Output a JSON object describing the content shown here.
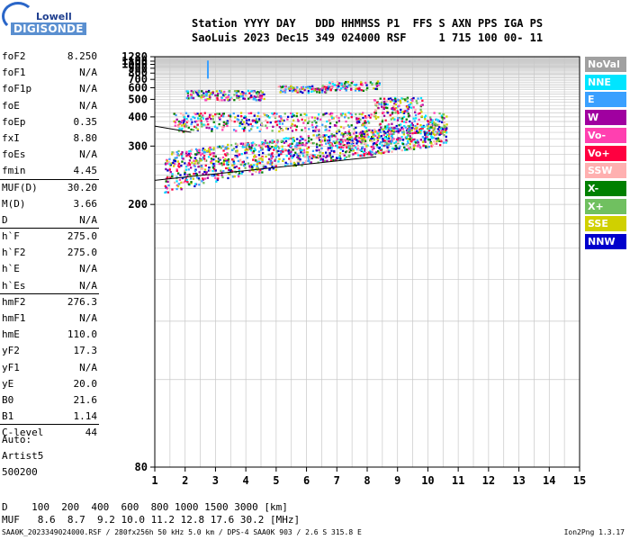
{
  "logo": {
    "top": "Lowell",
    "bottom": "DIGISONDE"
  },
  "header": {
    "row1": "Station YYYY DAY   DDD HHMMSS P1  FFS S AXN PPS IGA PS",
    "row2": "SaoLuis 2023 Dec15 349 024000 RSF     1 715 100 00- 11"
  },
  "params": [
    {
      "name": "foF2",
      "value": "8.250"
    },
    {
      "name": "foF1",
      "value": "N/A"
    },
    {
      "name": "foF1p",
      "value": "N/A"
    },
    {
      "name": "foE",
      "value": "N/A"
    },
    {
      "name": "foEp",
      "value": "0.35"
    },
    {
      "name": "fxI",
      "value": "8.80"
    },
    {
      "name": "foEs",
      "value": "N/A"
    },
    {
      "name": "fmin",
      "value": "4.45"
    },
    {
      "name": "MUF(D)",
      "value": "30.20"
    },
    {
      "name": "M(D)",
      "value": "3.66"
    },
    {
      "name": "D",
      "value": "N/A"
    },
    {
      "name": "h`F",
      "value": "275.0"
    },
    {
      "name": "h`F2",
      "value": "275.0"
    },
    {
      "name": "h`E",
      "value": "N/A"
    },
    {
      "name": "h`Es",
      "value": "N/A"
    },
    {
      "name": "hmF2",
      "value": "276.3"
    },
    {
      "name": "hmF1",
      "value": "N/A"
    },
    {
      "name": "hmE",
      "value": "110.0"
    },
    {
      "name": "yF2",
      "value": "17.3"
    },
    {
      "name": "yF1",
      "value": "N/A"
    },
    {
      "name": "yE",
      "value": "20.0"
    },
    {
      "name": "B0",
      "value": "21.6"
    },
    {
      "name": "B1",
      "value": "1.14"
    },
    {
      "name": "C-level",
      "value": "44"
    }
  ],
  "auto": [
    "Auto:",
    "Artist5",
    "500200"
  ],
  "legend": [
    {
      "label": "NoVal",
      "color": "#a0a0a0"
    },
    {
      "label": "NNE",
      "color": "#00e5ff"
    },
    {
      "label": "E",
      "color": "#3aa0ff"
    },
    {
      "label": "W",
      "color": "#a000a0"
    },
    {
      "label": "Vo-",
      "color": "#ff40b0"
    },
    {
      "label": "Vo+",
      "color": "#ff0040"
    },
    {
      "label": "SSW",
      "color": "#ffb0b0"
    },
    {
      "label": "X-",
      "color": "#008000"
    },
    {
      "label": "X+",
      "color": "#70c060"
    },
    {
      "label": "SSE",
      "color": "#d0d000"
    },
    {
      "label": "NNW",
      "color": "#0000cc"
    }
  ],
  "bottom": {
    "row1": "D    100  200  400  600  800 1000 1500 3000 [km]",
    "row2": "MUF   8.6  8.7  9.2 10.0 11.2 12.8 17.6 30.2 [MHz]"
  },
  "footer": {
    "left": "SAA0K_2023349024000.RSF / 280fx256h 50 kHz 5.0 km / DPS-4 SAA0K 903 / 2.6 S 315.8 E",
    "right": "Ion2Png 1.3.17"
  },
  "chart_data": {
    "type": "scatter",
    "xlim": [
      1,
      15
    ],
    "ylim": [
      80,
      1280
    ],
    "x_ticks": [
      1,
      2,
      3,
      4,
      5,
      6,
      7,
      8,
      9,
      10,
      11,
      12,
      13,
      14,
      15
    ],
    "y_ticks": [
      80,
      200,
      300,
      400,
      500,
      600,
      700,
      800,
      900,
      1000,
      1100,
      1280
    ],
    "grid": true,
    "reciprocal_y_axis": true,
    "traces": [
      {
        "name": "trace-lower",
        "x": [
          1.0,
          8.3
        ],
        "y": [
          232,
          275
        ]
      },
      {
        "name": "trace-upper",
        "x": [
          1.0,
          2.2
        ],
        "y": [
          362,
          340
        ]
      }
    ],
    "echo_clusters": [
      {
        "x": [
          1.3,
          10.6
        ],
        "y": [
          215,
          345
        ]
      },
      {
        "x": [
          1.6,
          10.6
        ],
        "y": [
          345,
          425
        ]
      },
      {
        "x": [
          2.0,
          4.6
        ],
        "y": [
          500,
          580
        ]
      },
      {
        "x": [
          5.0,
          6.8
        ],
        "y": [
          560,
          630
        ]
      },
      {
        "x": [
          6.6,
          8.4
        ],
        "y": [
          580,
          690
        ]
      },
      {
        "x": [
          8.2,
          9.8
        ],
        "y": [
          420,
          520
        ]
      }
    ],
    "isolated_marks": [
      {
        "x": 2.72,
        "y": 870,
        "color": "#3aa0ff"
      }
    ]
  }
}
